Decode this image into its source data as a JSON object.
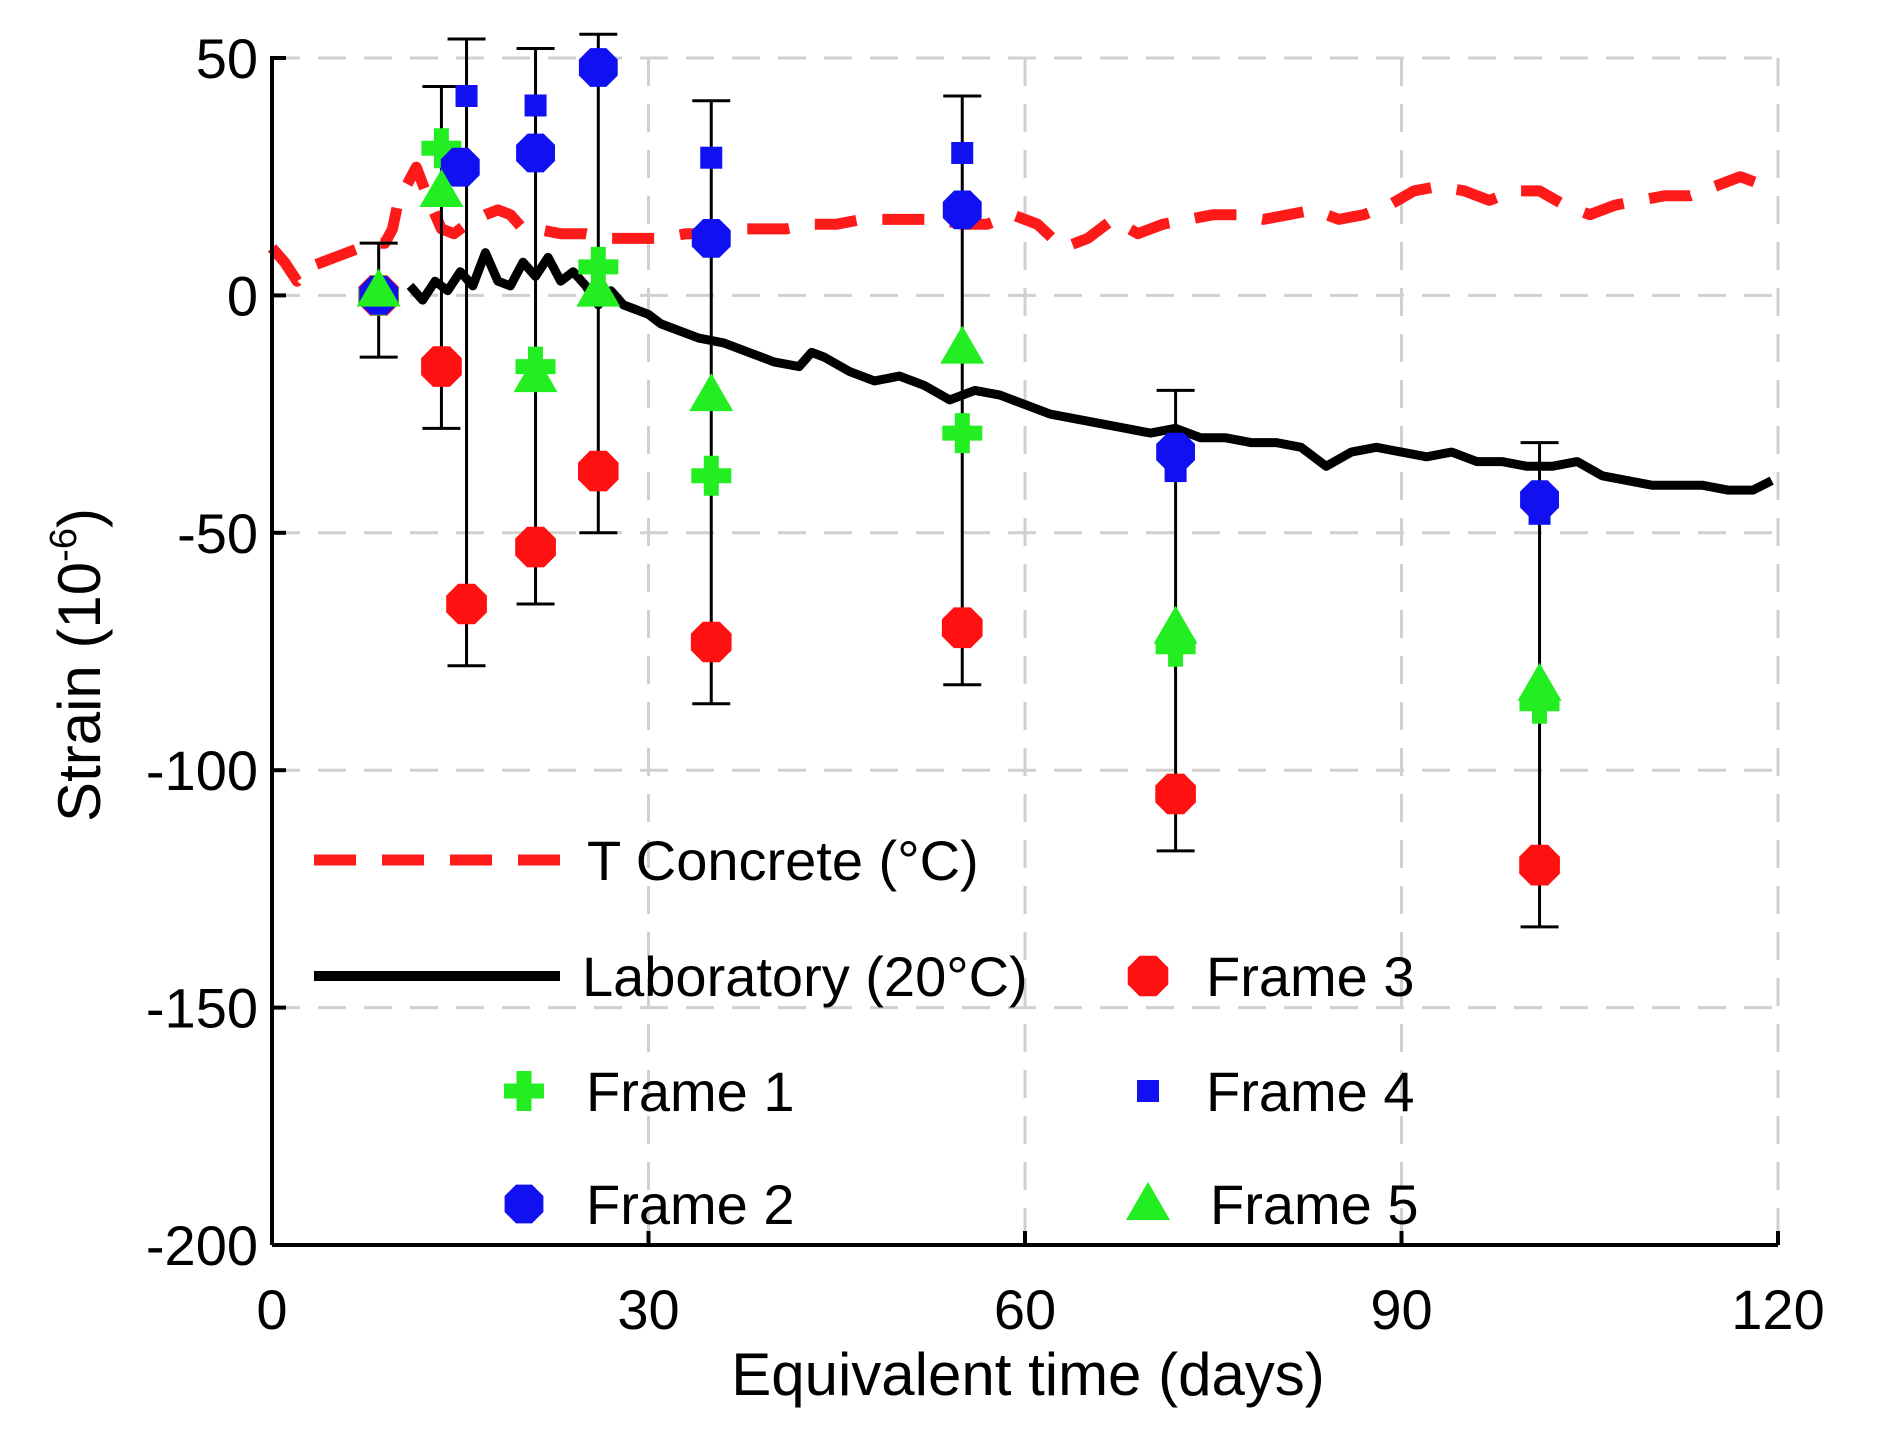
{
  "chart_data": {
    "type": "line+scatter",
    "xlabel": "Equivalent time (days)",
    "ylabel_main": "Strain (10",
    "ylabel_sup": "-6",
    "ylabel_close": ")",
    "xlim": [
      0,
      120
    ],
    "ylim": [
      -200,
      50
    ],
    "xticks": [
      0,
      30,
      60,
      90,
      120
    ],
    "xtick_labels": [
      "0",
      "30",
      "60",
      "90",
      "120"
    ],
    "yticks": [
      50,
      0,
      -50,
      -100,
      -150,
      -200
    ],
    "ytick_labels": [
      "50",
      "0",
      "-50",
      "-100",
      "-150",
      "-200"
    ],
    "grid": true,
    "colors": {
      "t_concrete": "#ff1a1a",
      "laboratory": "#000000",
      "frame1": "#22ee22",
      "frame2": "#1010f0",
      "frame3": "#ff1111",
      "frame4": "#1010f0",
      "frame5": "#22ee22",
      "grid": "#d0d0d0"
    },
    "legend": [
      {
        "key": "t_concrete",
        "label": "T Concrete (°C)"
      },
      {
        "key": "laboratory",
        "label": "Laboratory (20°C)"
      },
      {
        "key": "frame1",
        "label": "Frame 1"
      },
      {
        "key": "frame2",
        "label": "Frame 2"
      },
      {
        "key": "frame3",
        "label": "Frame 3"
      },
      {
        "key": "frame4",
        "label": "Frame 4"
      },
      {
        "key": "frame5",
        "label": "Frame 5"
      }
    ],
    "t_concrete": {
      "x": [
        0,
        1,
        2,
        3,
        5,
        7,
        8,
        9,
        9.6,
        10,
        10.5,
        11.5,
        12.5,
        13.5,
        14.5,
        15.5,
        17,
        18,
        19,
        20,
        21,
        23,
        25,
        27,
        29,
        31,
        33,
        35,
        37,
        39,
        41,
        43,
        45,
        47,
        49,
        51,
        53,
        55,
        57,
        59,
        61,
        63,
        65,
        67,
        69,
        71,
        73,
        75,
        77,
        79,
        81,
        83,
        85,
        87,
        89,
        91,
        93,
        95,
        97,
        99,
        101,
        103,
        105,
        107,
        109,
        111,
        113,
        115,
        117,
        118,
        119
      ],
      "y": [
        10,
        7,
        3,
        6,
        8,
        10,
        11,
        11,
        14,
        19,
        22,
        27,
        20,
        14,
        13,
        15,
        17,
        18,
        17,
        14,
        14,
        13,
        13,
        12,
        12,
        12,
        13,
        13,
        14,
        14,
        14,
        15,
        15,
        16,
        16,
        16,
        16,
        15,
        15,
        17,
        15,
        10,
        12,
        16,
        13,
        15,
        16,
        17,
        17,
        16,
        17,
        18,
        16,
        17,
        19,
        22,
        23,
        22,
        20,
        22,
        22,
        19,
        17,
        19,
        20,
        21,
        21,
        23,
        25,
        24,
        23
      ]
    },
    "laboratory": {
      "x": [
        11,
        12,
        13,
        14,
        15,
        16,
        17,
        18,
        19,
        20,
        21,
        22,
        23,
        24,
        25,
        26,
        27,
        28,
        29,
        30,
        31,
        32,
        34,
        36,
        38,
        40,
        42,
        43,
        44,
        46,
        48,
        50,
        52,
        54,
        56,
        58,
        60,
        62,
        64,
        66,
        68,
        70,
        72,
        74,
        76,
        78,
        80,
        82,
        84,
        86,
        88,
        90,
        92,
        94,
        96,
        98,
        100,
        102,
        104,
        106,
        108,
        110,
        112,
        114,
        116,
        118,
        119.5
      ],
      "y": [
        2,
        -1,
        3,
        1,
        5,
        2,
        9,
        3,
        2,
        7,
        4,
        8,
        3,
        5,
        2,
        -2,
        1,
        -2,
        -3,
        -4,
        -6,
        -7,
        -9,
        -10,
        -12,
        -14,
        -15,
        -12,
        -13,
        -16,
        -18,
        -17,
        -19,
        -22,
        -20,
        -21,
        -23,
        -25,
        -26,
        -27,
        -28,
        -29,
        -28,
        -30,
        -30,
        -31,
        -31,
        -32,
        -36,
        -33,
        -32,
        -33,
        -34,
        -33,
        -35,
        -35,
        -36,
        -36,
        -35,
        -38,
        -39,
        -40,
        -40,
        -40,
        -41,
        -41,
        -39
      ]
    },
    "markers": {
      "frame1": {
        "x": [
          8.5,
          13.5,
          21,
          26,
          35,
          55,
          72,
          101
        ],
        "y": [
          0,
          31,
          -15,
          6,
          -38,
          -29,
          -74,
          -86
        ]
      },
      "frame2": {
        "x": [
          8.5,
          15,
          21,
          26,
          35,
          55,
          72,
          101
        ],
        "y": [
          0,
          27,
          30,
          48,
          12,
          18,
          -33,
          -43
        ]
      },
      "frame3": {
        "x": [
          8.5,
          13.5,
          15.5,
          21,
          26,
          35,
          55,
          72,
          101
        ],
        "y": [
          0,
          -15,
          -65,
          -53,
          -37,
          -73,
          -70,
          -105,
          -120
        ]
      },
      "frame4": {
        "x": [
          8.5,
          15.5,
          21,
          26,
          35,
          55,
          72,
          101
        ],
        "y": [
          1,
          42,
          40,
          47,
          29,
          30,
          -37,
          -46
        ]
      },
      "frame5": {
        "x": [
          8.5,
          13.5,
          21,
          26,
          35,
          55,
          72,
          101
        ],
        "y": [
          1,
          22,
          -17,
          1,
          -21,
          -11,
          -70,
          -82
        ]
      }
    },
    "error_bars": [
      {
        "x": 8.5,
        "low": -13,
        "high": 11
      },
      {
        "x": 13.5,
        "low": -28,
        "high": 44
      },
      {
        "x": 15.5,
        "low": -78,
        "high": 54
      },
      {
        "x": 21,
        "low": -65,
        "high": 52
      },
      {
        "x": 26,
        "low": -50,
        "high": 55
      },
      {
        "x": 35,
        "low": -86,
        "high": 41
      },
      {
        "x": 55,
        "low": -82,
        "high": 42
      },
      {
        "x": 72,
        "low": -117,
        "high": -20
      },
      {
        "x": 101,
        "low": -133,
        "high": -31
      }
    ]
  }
}
